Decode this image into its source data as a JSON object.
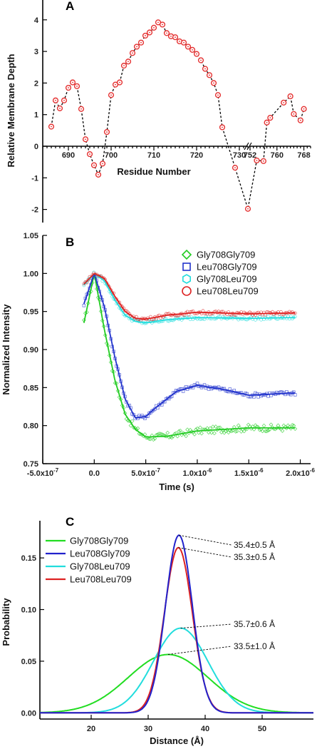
{
  "chart_data": [
    {
      "panel": "A",
      "type": "line",
      "xlabel": "Residue Number",
      "ylabel": "Relative Membrane Depth",
      "ylim": [
        -2.5,
        4.5
      ],
      "yticks": [
        -2,
        -1,
        0,
        1,
        2,
        3,
        4
      ],
      "x_segments": [
        {
          "range": [
            684,
            732
          ],
          "ticks": [
            690,
            700,
            710,
            720,
            730
          ]
        },
        {
          "range": [
            752,
            770
          ],
          "ticks": [
            752,
            760,
            768
          ]
        }
      ],
      "axis_break_between": [
        732,
        752
      ],
      "series": [
        {
          "marker": "circle-dot",
          "color": "#e53333",
          "points": [
            [
              686,
              0.62
            ],
            [
              687,
              1.45
            ],
            [
              688,
              1.2
            ],
            [
              689,
              1.45
            ],
            [
              690,
              1.85
            ],
            [
              691,
              2.02
            ],
            [
              692,
              1.9
            ],
            [
              693,
              1.18
            ],
            [
              694,
              0.22
            ],
            [
              695,
              -0.25
            ],
            [
              696,
              -0.6
            ],
            [
              697,
              -0.9
            ],
            [
              698,
              -0.55
            ],
            [
              699,
              0.45
            ],
            [
              700,
              1.62
            ],
            [
              701,
              1.95
            ],
            [
              702,
              2.02
            ],
            [
              703,
              2.55
            ],
            [
              704,
              2.68
            ],
            [
              705,
              2.95
            ],
            [
              706,
              3.15
            ],
            [
              707,
              3.28
            ],
            [
              708,
              3.5
            ],
            [
              709,
              3.6
            ],
            [
              710,
              3.75
            ],
            [
              711,
              3.92
            ],
            [
              712,
              3.85
            ],
            [
              713,
              3.58
            ],
            [
              714,
              3.48
            ],
            [
              715,
              3.45
            ],
            [
              716,
              3.32
            ],
            [
              717,
              3.28
            ],
            [
              718,
              3.15
            ],
            [
              719,
              3.05
            ],
            [
              720,
              2.92
            ],
            [
              721,
              2.72
            ],
            [
              722,
              2.45
            ],
            [
              723,
              2.25
            ],
            [
              724,
              2.0
            ],
            [
              725,
              1.62
            ],
            [
              726,
              0.6
            ],
            [
              729,
              -0.68
            ],
            [
              732,
              -1.98
            ],
            [
              754,
              -0.45
            ],
            [
              756,
              -0.47
            ],
            [
              757,
              0.75
            ],
            [
              758,
              0.9
            ],
            [
              762,
              1.38
            ],
            [
              764,
              1.58
            ],
            [
              765,
              1.02
            ],
            [
              767,
              0.82
            ],
            [
              768,
              1.18
            ]
          ]
        }
      ]
    },
    {
      "panel": "B",
      "type": "scatter",
      "xlabel": "Time (s)",
      "ylabel": "Normalized Intensity",
      "xlim": [
        -5e-07,
        2.1e-06
      ],
      "ylim": [
        0.75,
        1.05
      ],
      "xtick_labels": [
        "-5.0x10-7",
        "0.0",
        "5.0x10-7",
        "1.0x10-6",
        "1.5x10-6",
        "2.0x10-6"
      ],
      "xticks": [
        -5e-07,
        0,
        5e-07,
        1e-06,
        1.5e-06,
        2e-06
      ],
      "yticks": [
        "0.75",
        "0.80",
        "0.85",
        "0.90",
        "0.95",
        "1.00",
        "1.05"
      ],
      "legend_position": "top-right",
      "series": [
        {
          "name": "Gly708Gly709",
          "marker": "diamond",
          "color": "#22cc22",
          "fit": [
            [
              -1e-07,
              0.935
            ],
            [
              0,
              1.0
            ],
            [
              1e-07,
              0.925
            ],
            [
              2e-07,
              0.86
            ],
            [
              3e-07,
              0.815
            ],
            [
              4e-07,
              0.795
            ],
            [
              5e-07,
              0.785
            ],
            [
              7e-07,
              0.786
            ],
            [
              1e-06,
              0.793
            ],
            [
              1.5e-06,
              0.797
            ],
            [
              1.95e-06,
              0.797
            ]
          ]
        },
        {
          "name": "Leu708Gly709",
          "marker": "square",
          "color": "#2233cc",
          "fit": [
            [
              -1e-07,
              0.96
            ],
            [
              0,
              1.0
            ],
            [
              1e-07,
              0.955
            ],
            [
              2e-07,
              0.89
            ],
            [
              3e-07,
              0.835
            ],
            [
              4e-07,
              0.81
            ],
            [
              5e-07,
              0.812
            ],
            [
              6e-07,
              0.824
            ],
            [
              8e-07,
              0.845
            ],
            [
              1e-06,
              0.853
            ],
            [
              1.2e-06,
              0.849
            ],
            [
              1.5e-06,
              0.84
            ],
            [
              1.95e-06,
              0.843
            ]
          ]
        },
        {
          "name": "Gly708Leu709",
          "marker": "hexagon",
          "color": "#22dddd",
          "fit": [
            [
              -1e-07,
              0.985
            ],
            [
              0,
              1.0
            ],
            [
              1e-07,
              0.99
            ],
            [
              2e-07,
              0.965
            ],
            [
              3e-07,
              0.945
            ],
            [
              4e-07,
              0.937
            ],
            [
              5e-07,
              0.935
            ],
            [
              7e-07,
              0.939
            ],
            [
              1e-06,
              0.942
            ],
            [
              1.5e-06,
              0.941
            ],
            [
              1.95e-06,
              0.942
            ]
          ]
        },
        {
          "name": "Leu708Leu709",
          "marker": "circle",
          "color": "#dd2222",
          "fit": [
            [
              -1e-07,
              0.986
            ],
            [
              0,
              1.0
            ],
            [
              1e-07,
              0.993
            ],
            [
              2e-07,
              0.97
            ],
            [
              3e-07,
              0.95
            ],
            [
              4e-07,
              0.941
            ],
            [
              5e-07,
              0.94
            ],
            [
              7e-07,
              0.945
            ],
            [
              1e-06,
              0.949
            ],
            [
              1.5e-06,
              0.947
            ],
            [
              1.95e-06,
              0.948
            ]
          ]
        }
      ]
    },
    {
      "panel": "C",
      "type": "line",
      "xlabel": "Distance (Å)",
      "ylabel": "Probability",
      "xlim": [
        11,
        59
      ],
      "ylim": [
        -0.006,
        0.186
      ],
      "xticks": [
        20,
        30,
        40,
        50
      ],
      "yticks": [
        "0.00",
        "0.05",
        "0.10",
        "0.15"
      ],
      "legend_position": "top-left",
      "series": [
        {
          "name": "Gly708Gly709",
          "color": "#22dd22",
          "gaussian": {
            "mean": 33.5,
            "sigma": 7.0,
            "peak": 0.0565
          },
          "annotation": "33.5±1.0 Å"
        },
        {
          "name": "Leu708Gly709",
          "color": "#2222cc",
          "gaussian": {
            "mean": 35.4,
            "sigma": 2.35,
            "peak": 0.172
          },
          "annotation": "35.4±0.5 Å"
        },
        {
          "name": "Gly708Leu709",
          "color": "#22dddd",
          "gaussian": {
            "mean": 35.7,
            "sigma": 4.8,
            "peak": 0.082
          },
          "annotation": "35.7±0.6 Å"
        },
        {
          "name": "Leu708Leu709",
          "color": "#dd2222",
          "gaussian": {
            "mean": 35.3,
            "sigma": 2.45,
            "peak": 0.16
          },
          "annotation": "35.3±0.5 Å"
        }
      ]
    }
  ]
}
